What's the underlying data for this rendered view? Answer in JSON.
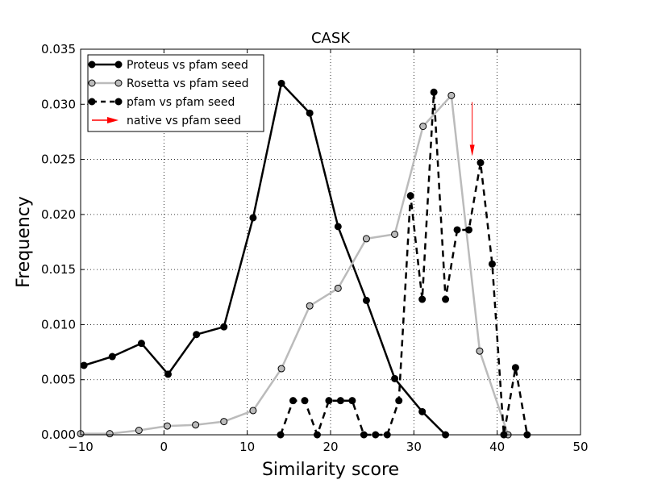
{
  "chart_data": {
    "type": "line",
    "title": "CASK",
    "xlabel": "Similarity score",
    "ylabel": "Frequency",
    "xlim": [
      -10,
      50
    ],
    "ylim": [
      0,
      0.035
    ],
    "xticks": [
      -10,
      0,
      10,
      20,
      30,
      40,
      50
    ],
    "xtick_labels": [
      "−10",
      "0",
      "10",
      "20",
      "30",
      "40",
      "50"
    ],
    "yticks": [
      0,
      0.005,
      0.01,
      0.015,
      0.02,
      0.025,
      0.03,
      0.035
    ],
    "ytick_labels": [
      "0.000",
      "0.005",
      "0.010",
      "0.015",
      "0.020",
      "0.025",
      "0.030",
      "0.035"
    ],
    "grid": true,
    "legend_position": "top-left",
    "series": [
      {
        "name": "Proteus vs pfam seed",
        "color": "#000000",
        "marker_color": "#000000",
        "line_style": "solid",
        "x": [
          -9.6,
          -6.2,
          -2.7,
          0.5,
          3.9,
          7.2,
          10.7,
          14.1,
          17.5,
          20.9,
          24.3,
          27.7,
          31.0,
          33.8
        ],
        "y": [
          0.0063,
          0.0071,
          0.0083,
          0.0055,
          0.0091,
          0.0098,
          0.0197,
          0.0319,
          0.0292,
          0.0189,
          0.0122,
          0.0051,
          0.0021,
          0.0
        ]
      },
      {
        "name": "Rosetta vs pfam seed",
        "color": "#bbbbbb",
        "marker_color": "#bbbbbb",
        "line_style": "solid",
        "x": [
          -10.0,
          -6.5,
          -3.0,
          0.4,
          3.8,
          7.2,
          10.7,
          14.1,
          17.5,
          20.9,
          24.3,
          27.7,
          31.1,
          34.5,
          37.9,
          41.3
        ],
        "y": [
          0.0001,
          0.0001,
          0.0004,
          0.0008,
          0.0009,
          0.0012,
          0.0022,
          0.006,
          0.0117,
          0.0133,
          0.0178,
          0.0182,
          0.028,
          0.0308,
          0.0076,
          0.0
        ]
      },
      {
        "name": "pfam vs pfam seed",
        "color": "#000000",
        "marker_color": "#000000",
        "line_style": "dashed",
        "x": [
          14.0,
          15.5,
          16.9,
          18.4,
          19.8,
          21.2,
          22.6,
          24.0,
          25.4,
          26.8,
          28.2,
          29.6,
          31.0,
          32.4,
          33.8,
          35.2,
          36.6,
          38.0,
          39.4,
          40.8,
          42.2,
          43.6
        ],
        "y": [
          0.0,
          0.0031,
          0.0031,
          0.0,
          0.0031,
          0.0031,
          0.0031,
          0.0,
          0.0,
          0.0,
          0.0031,
          0.0217,
          0.0123,
          0.0311,
          0.0123,
          0.0186,
          0.0186,
          0.0247,
          0.0155,
          0.0,
          0.0061,
          0.0
        ]
      },
      {
        "name": "native vs pfam seed",
        "color": "#ff0000",
        "type": "arrow",
        "x": 37.0,
        "y_from": 0.0302,
        "y_to": 0.0253
      }
    ]
  }
}
